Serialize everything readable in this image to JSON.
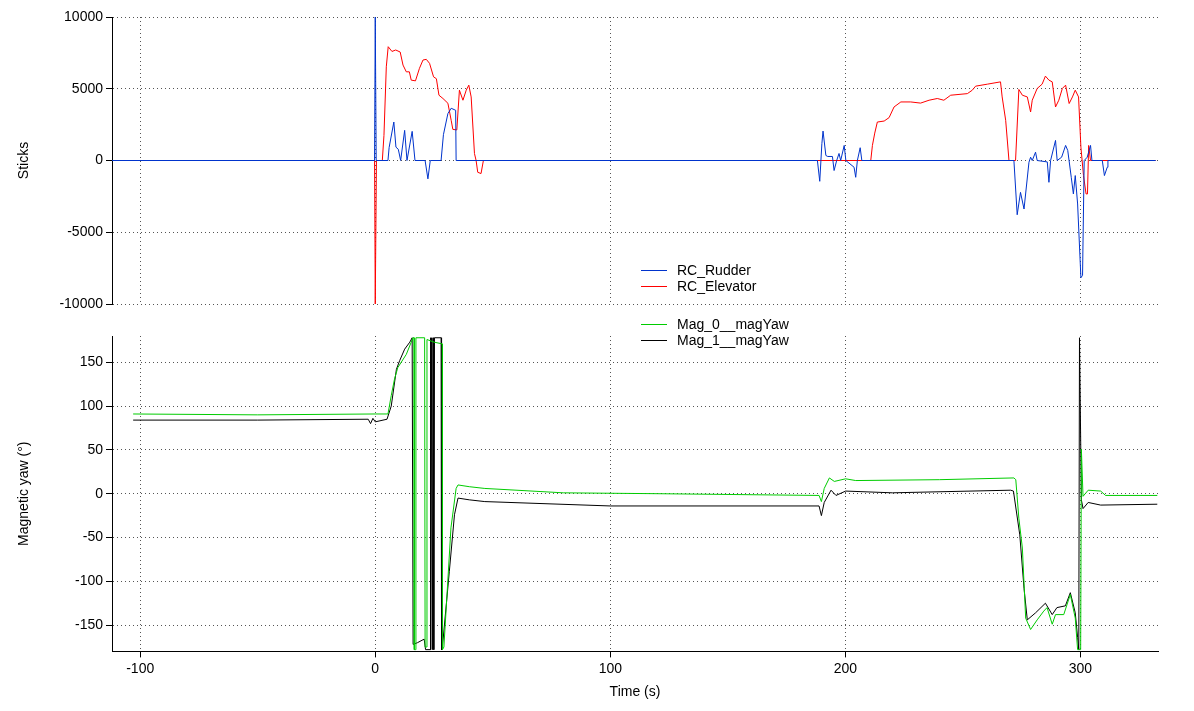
{
  "chart_data": [
    {
      "type": "line",
      "ylabel": "Sticks",
      "xlim": [
        -112,
        333
      ],
      "xticks": [
        -100,
        0,
        100,
        200,
        300
      ],
      "ylim": [
        -10000,
        10000
      ],
      "yticks": [
        -10000,
        -5000,
        0,
        5000,
        10000
      ],
      "tick_labels": "y",
      "grid": true,
      "legend": "bottom",
      "series": [
        {
          "name": "RC_Rudder",
          "color": "#0033cc",
          "x": [
            -112,
            -0.3,
            0,
            0.4,
            5.4,
            5.9,
            7.9,
            8.8,
            9.8,
            10.8,
            12.5,
            13.5,
            15.7,
            16.9,
            21.2,
            22.4,
            23.4,
            28,
            29,
            30.9,
            32.3,
            34.2,
            34.4,
            188.1,
            189.1,
            190,
            190.5,
            191.7,
            192.5,
            194.5,
            195.2,
            196.3,
            197.3,
            198,
            199.5,
            200.2,
            203.7,
            204.4,
            205.1,
            206.3,
            207,
            271.7,
            273.1,
            274.5,
            276,
            278.1,
            278.8,
            279.5,
            280.9,
            281.6,
            285.9,
            286.6,
            287.3,
            289.4,
            290.1,
            292,
            293.7,
            294.6,
            296.1,
            297,
            297.8,
            298.8,
            300.2,
            300.9,
            301.6,
            302.9,
            304.3,
            304.9,
            309.3,
            310.2,
            311.4,
            311.7,
            332
          ],
          "values": [
            0,
            0,
            10000,
            0,
            0,
            910,
            2680,
            930,
            780,
            0,
            2100,
            0,
            2030,
            0,
            0,
            -1280,
            0,
            0,
            1800,
            3270,
            3640,
            3500,
            0,
            0,
            -1450,
            1170,
            2050,
            350,
            280,
            280,
            -700,
            0,
            490,
            0,
            1050,
            0,
            -470,
            -1170,
            0,
            890,
            0,
            0,
            -3780,
            -2220,
            -3380,
            -120,
            230,
            0,
            580,
            0,
            -100,
            -1520,
            0,
            1400,
            0,
            230,
            1050,
            700,
            -1170,
            -2330,
            -1050,
            -3030,
            -8170,
            -8000,
            0,
            230,
            1050,
            0,
            0,
            -1050,
            -470,
            0,
            0
          ]
        },
        {
          "name": "RC_Elevator",
          "color": "#ff0000",
          "x": [
            -112,
            -0.3,
            0,
            0.5,
            3,
            3.7,
            4.7,
            5.5,
            7.1,
            8.7,
            10.6,
            11.8,
            13.2,
            14.5,
            15.3,
            17.1,
            18.8,
            20.3,
            21.7,
            23.1,
            24.8,
            26,
            27.1,
            28.8,
            30.9,
            32.3,
            33,
            34.7,
            35.8,
            37.3,
            38.7,
            39.8,
            40.8,
            42.2,
            42.9,
            43.6,
            45,
            46,
            210.8,
            211.5,
            212.5,
            213.6,
            216.5,
            218.6,
            220.7,
            223.6,
            227.8,
            232,
            235.6,
            239.1,
            241.9,
            244.8,
            251.9,
            254,
            255.4,
            260.4,
            266,
            266.7,
            268.2,
            269.6,
            272.4,
            273.8,
            275.3,
            277.4,
            278.8,
            279.5,
            281.6,
            283.7,
            285.1,
            286.6,
            288,
            289.4,
            290.8,
            292.3,
            293.7,
            295.2,
            296.6,
            297.8,
            299.2,
            300.2,
            301.3,
            302.4,
            303,
            303.5,
            304.3,
            332
          ],
          "values": [
            0,
            0,
            -10000,
            0,
            0,
            1750,
            6530,
            7930,
            7600,
            7700,
            7560,
            6650,
            6180,
            6180,
            5600,
            5550,
            6420,
            7000,
            7050,
            6770,
            5830,
            5700,
            4550,
            4320,
            3990,
            2800,
            2170,
            2130,
            4900,
            4200,
            4900,
            5250,
            4430,
            490,
            0,
            -820,
            -910,
            0,
            0,
            1050,
            1910,
            2680,
            2750,
            2990,
            3730,
            4080,
            4080,
            4000,
            4200,
            4320,
            4200,
            4550,
            4660,
            4900,
            5180,
            5320,
            5480,
            4430,
            2800,
            0,
            0,
            4950,
            4550,
            4430,
            3380,
            4200,
            5020,
            5320,
            5880,
            5600,
            5480,
            3730,
            4200,
            5020,
            5250,
            3970,
            4430,
            4900,
            4430,
            930,
            -1050,
            -2330,
            -2330,
            1050,
            0,
            0
          ]
        }
      ]
    },
    {
      "type": "line",
      "xlabel": "Time (s)",
      "ylabel": "Magnetic yaw (°)",
      "xlim": [
        -112,
        333
      ],
      "xticks": [
        -100,
        0,
        100,
        200,
        300
      ],
      "ylim": [
        -180,
        180
      ],
      "yticks": [
        -150,
        -100,
        -50,
        0,
        50,
        100,
        150
      ],
      "grid": true,
      "legend": "top",
      "series": [
        {
          "name": "Mag_0__magYaw",
          "color": "#00cc00",
          "x": [
            -103,
            -50,
            0,
            5.4,
            6.8,
            8.2,
            9.6,
            13.2,
            15.3,
            16,
            16.5,
            16.6,
            17.2,
            17.3,
            21,
            21.2,
            21.9,
            22,
            25,
            28.5,
            28.6,
            29.2,
            32.2,
            34.4,
            35.2,
            40,
            46.6,
            80,
            120,
            188.8,
            189.8,
            191,
            193.2,
            195.3,
            200.1,
            204.4,
            240,
            271.7,
            272.5,
            273.8,
            275.3,
            276.7,
            278.8,
            281.6,
            284.4,
            285.8,
            288,
            289.4,
            292.9,
            295.7,
            297.8,
            298.8,
            300.1,
            300.4,
            301.1,
            303.3,
            308.6,
            310.7,
            332.7
          ],
          "values": [
            91,
            90,
            91,
            91,
            112,
            131,
            144,
            159,
            173,
            178,
            178,
            -178,
            -178,
            178,
            178,
            -175,
            -175,
            176,
            173,
            171,
            -178,
            -175,
            -39,
            6,
            10,
            8,
            6,
            1,
            0,
            -2,
            -9,
            6,
            18,
            14,
            17,
            15,
            16,
            18,
            16,
            -28,
            -62,
            -142,
            -155,
            -144,
            -134,
            -130,
            -149,
            -138,
            -138,
            -115,
            -142,
            -178,
            -178,
            51,
            -3,
            4,
            3,
            -2,
            -2
          ]
        },
        {
          "name": "Mag_1__magYaw",
          "color": "#000000",
          "x": [
            -103,
            -50,
            -3,
            -2,
            -1,
            0,
            5,
            6.8,
            9,
            10.4,
            12.5,
            14.7,
            15.7,
            16,
            16.1,
            18,
            20.8,
            21.4,
            23.3,
            23.4,
            23.7,
            24,
            24.3,
            24.6,
            24.9,
            25.2,
            28,
            28.2,
            28.5,
            31.5,
            33.7,
            35.2,
            40,
            46.6,
            100,
            188.8,
            189.8,
            191,
            193.9,
            196,
            200.1,
            220,
            270.3,
            271.5,
            274.2,
            276,
            277.4,
            280.9,
            285.1,
            288,
            290,
            293.6,
            295.7,
            297.8,
            298.8,
            299.3,
            299.6,
            300.4,
            301.1,
            303.3,
            308.6,
            332.7
          ],
          "values": [
            84,
            84,
            85,
            80,
            86,
            82,
            85,
            100,
            142,
            152,
            165,
            173,
            178,
            178,
            -172,
            -170,
            -166,
            -178,
            -178,
            178,
            -178,
            178,
            -178,
            178,
            -178,
            178,
            178,
            -178,
            -177,
            -89,
            -24,
            -5,
            -7,
            -9,
            -14,
            -14,
            -25,
            -10,
            4,
            -2,
            3,
            1,
            4,
            3,
            -47,
            -108,
            -144,
            -136,
            -125,
            -138,
            -130,
            -128,
            -113,
            -136,
            -164,
            -178,
            178,
            -7,
            -17,
            -10,
            -13,
            -12
          ]
        }
      ]
    }
  ]
}
